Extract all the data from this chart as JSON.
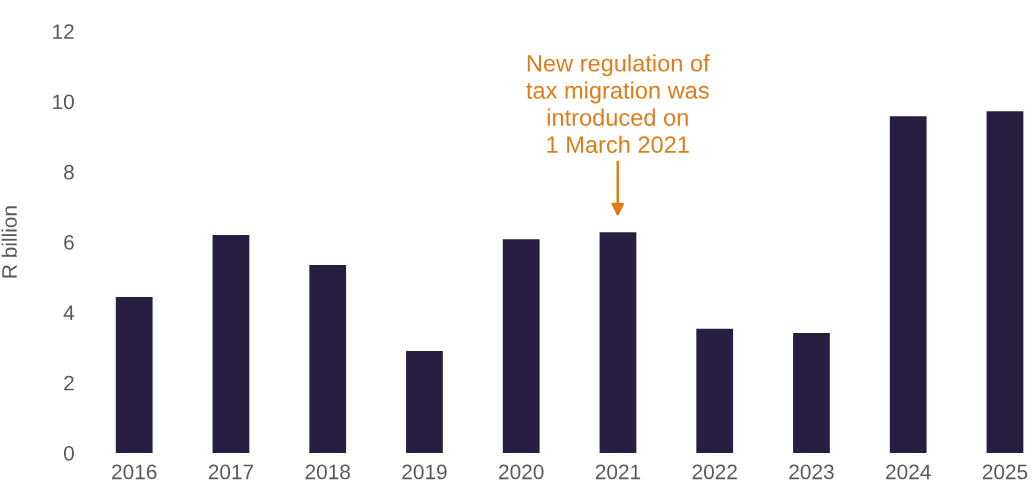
{
  "chart_data": {
    "type": "bar",
    "ylabel": "R billion",
    "categories": [
      "2016",
      "2017",
      "2018",
      "2019",
      "2020",
      "2021",
      "2022",
      "2023",
      "2024",
      "2025"
    ],
    "values": [
      4.44,
      6.2,
      5.35,
      2.9,
      6.08,
      6.28,
      3.53,
      3.41,
      9.58,
      9.72
    ],
    "color": "#271e41",
    "ylim": [
      0,
      12
    ],
    "yticks": [
      0,
      2,
      4,
      6,
      8,
      10,
      12
    ],
    "grid": false,
    "legend": false,
    "annotations": [
      "New regulation of\ntax migration was\nintroduced on\n1 March 2021"
    ]
  }
}
